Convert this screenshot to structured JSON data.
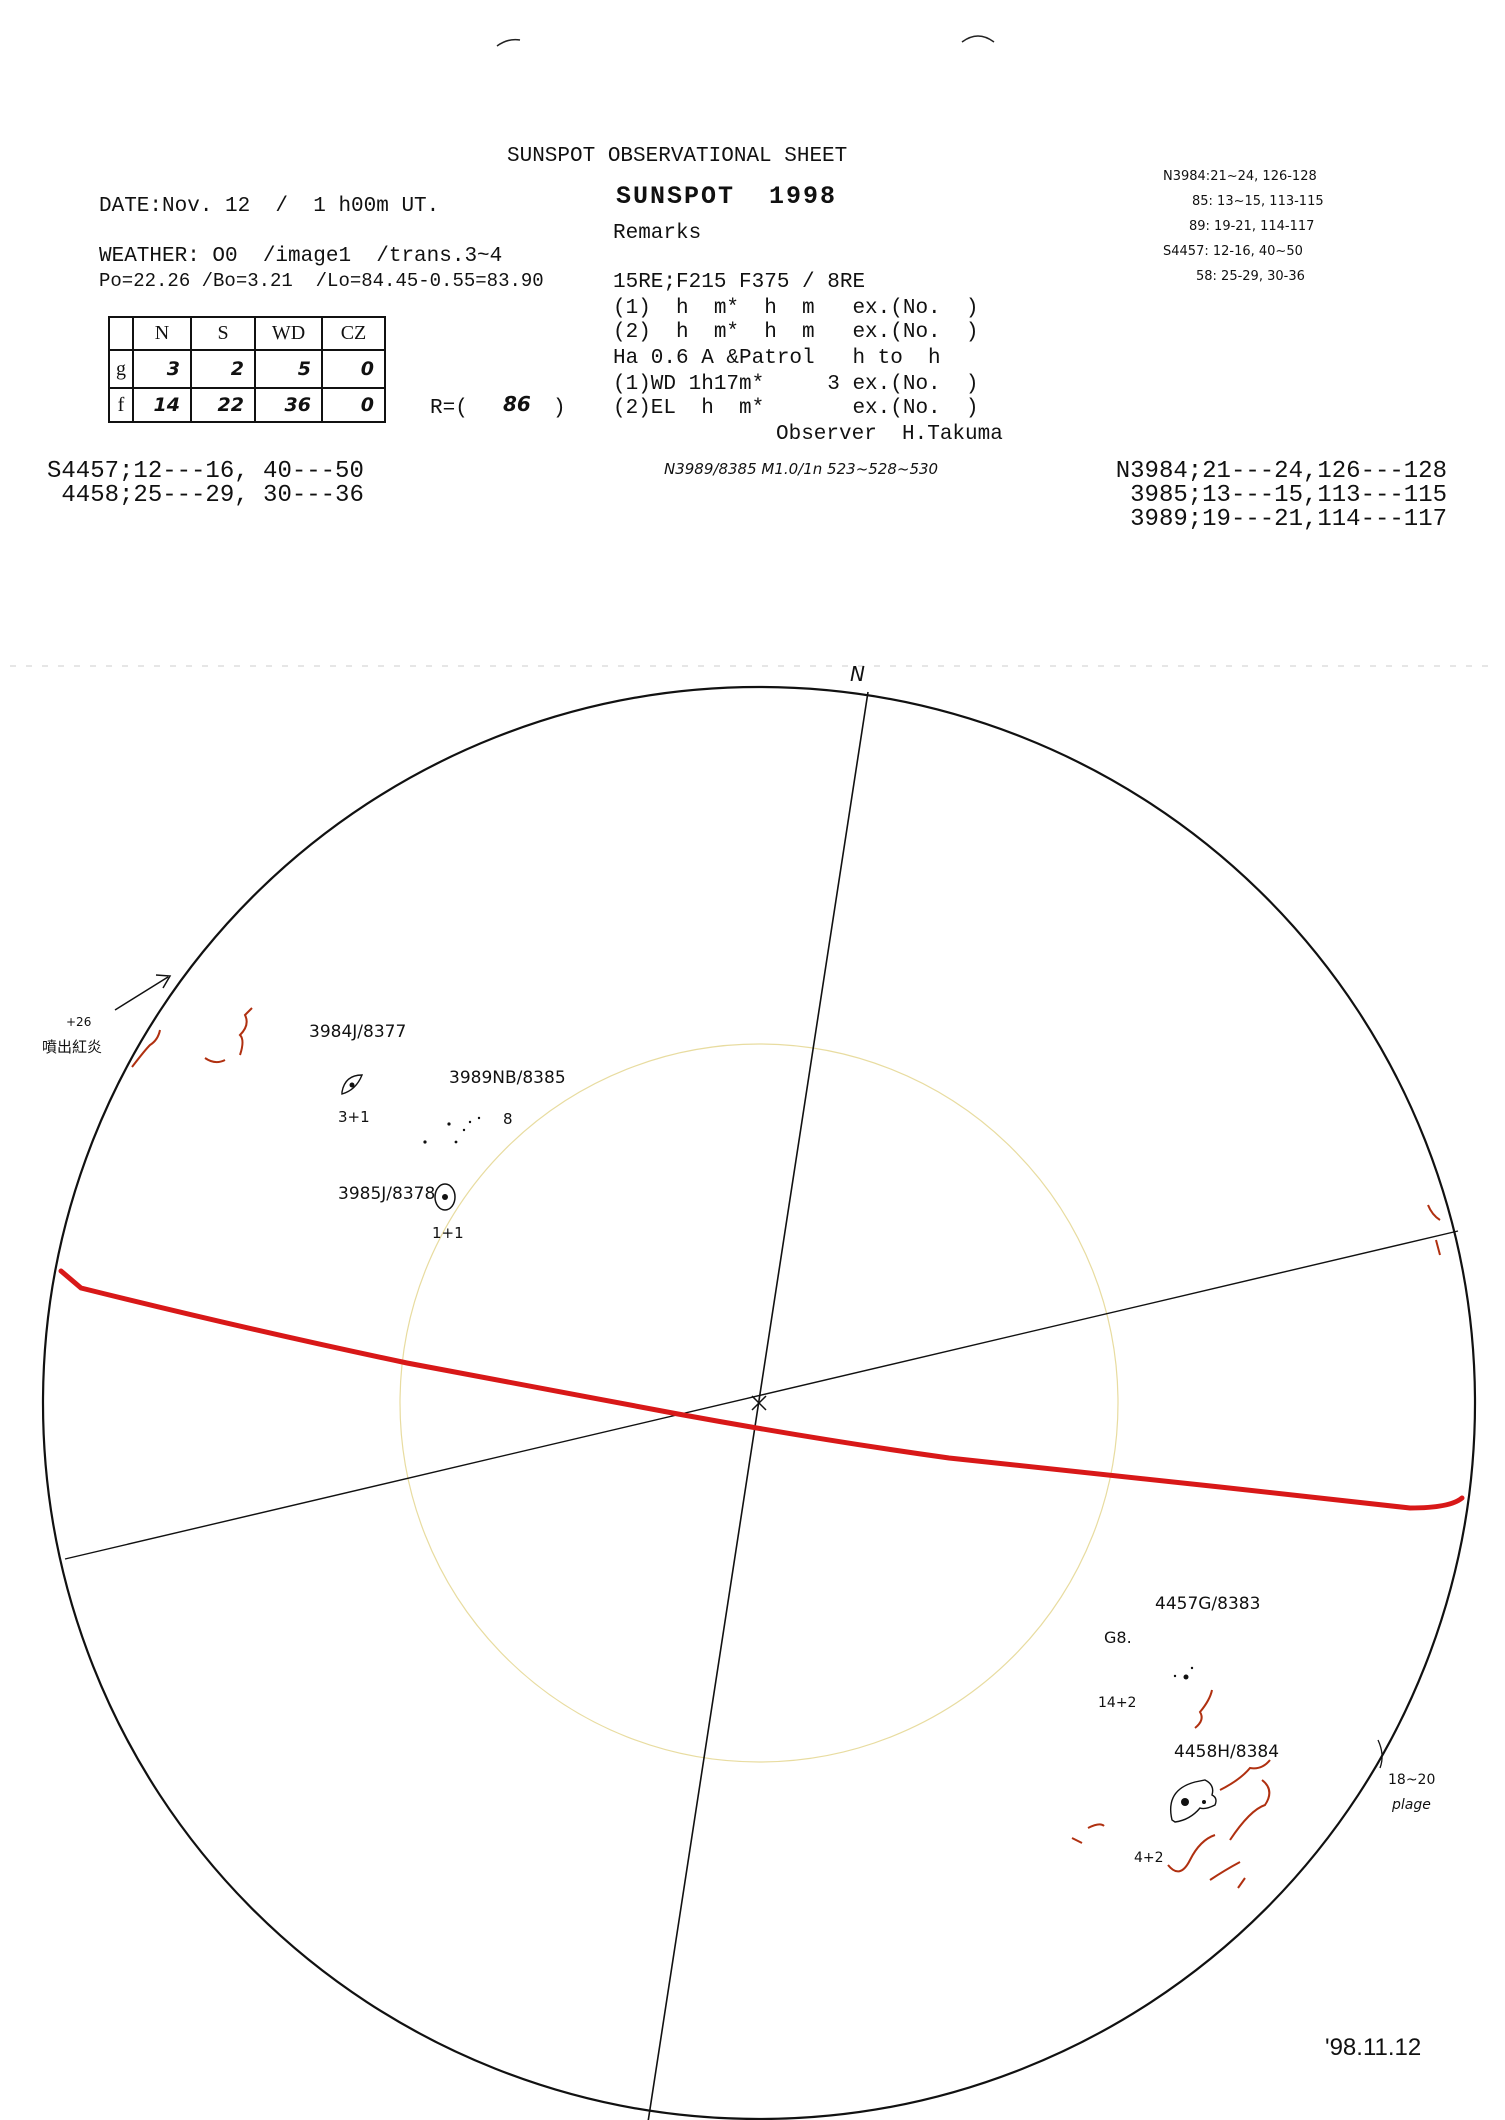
{
  "sheet": {
    "title": "SUNSPOT OBSERVATIONAL SHEET",
    "subtitle": "SUNSPOT  1998",
    "date_line": "DATE:Nov. 12  /  1 h00m UT.",
    "weather_line": "WEATHER: O0  /image1  /trans.3~4",
    "params_line": "Po=22.26 /Bo=3.21  /Lo=84.45-0.55=83.90",
    "r_label": "R=(",
    "r_value": "86",
    "r_close": ")",
    "footer_date": "'98.11.12"
  },
  "count_table": {
    "headers": [
      "",
      "N",
      "S",
      "WD",
      "CZ"
    ],
    "rows": [
      {
        "label": "g",
        "values": [
          "3",
          "2",
          "5",
          "0"
        ]
      },
      {
        "label": "f",
        "values": [
          "14",
          "22",
          "36",
          "0"
        ]
      }
    ]
  },
  "remarks": {
    "heading": "Remarks",
    "lines": [
      "15RE;F215 F375 / 8RE",
      "(1)  h  m*  h  m   ex.(No.  )",
      "(2)  h  m*  h  m   ex.(No.  )",
      "Ha 0.6 A &Patrol   h to  h",
      "(1)WD 1h17m*     3 ex.(No.  )",
      "(2)EL  h  m*       ex.(No.  )"
    ],
    "observer": "Observer  H.Takuma"
  },
  "handwritten_notes_top_right": [
    "N3984:21~24, 126-128",
    "85: 13~15, 113-115",
    "89: 19-21, 114-117",
    "S4457: 12-16, 40~50",
    "58: 25-29, 30-36"
  ],
  "region_ranges_left": [
    "S4457;12---16, 40---50",
    " 4458;25---29, 30---36"
  ],
  "region_ranges_right": [
    "N3984;21---24,126---128",
    "3985;13---15,113---115",
    "3989;19---21,114---117"
  ],
  "middle_note": "N3989/8385 M1.0/1n 523~528~530",
  "disk": {
    "north_label": "N",
    "prominence_height": "+26",
    "prominence_label": "噴出紅炎",
    "limb_note_range": "18~20",
    "limb_note_label": "plage",
    "groups": [
      {
        "label": "3984J/8377",
        "count": "3+1"
      },
      {
        "label": "3989NB/8385",
        "count": "8"
      },
      {
        "label": "3985J/8378",
        "count": "1+1"
      },
      {
        "label": "4457G/8383",
        "count": "14+2",
        "class_note": "G8."
      },
      {
        "label": "4458H/8384",
        "count": "4+2"
      }
    ],
    "colors": {
      "outline": "#111111",
      "equator_line": "#d81818",
      "plage": "#b03010",
      "inner_circle": "#e8dca0"
    }
  }
}
